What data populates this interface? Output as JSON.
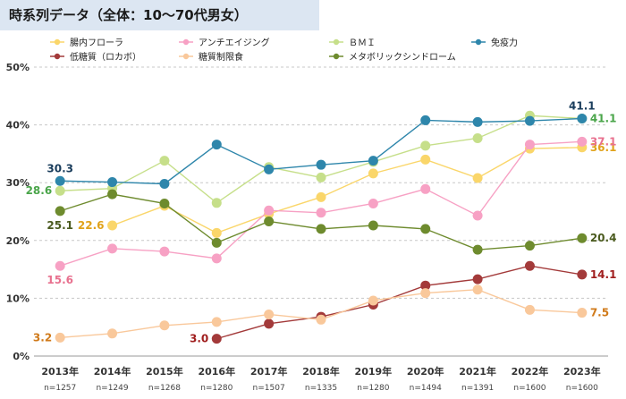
{
  "title": "時系列データ（全体：10〜70代男女）",
  "chart_data": {
    "type": "line",
    "categories": [
      "2013年",
      "2014年",
      "2015年",
      "2016年",
      "2017年",
      "2018年",
      "2019年",
      "2020年",
      "2021年",
      "2022年",
      "2023年"
    ],
    "sample_sizes": [
      "n=1257",
      "n=1249",
      "n=1268",
      "n=1280",
      "n=1507",
      "n=1335",
      "n=1280",
      "n=1494",
      "n=1391",
      "n=1600",
      "n=1600"
    ],
    "ylim": [
      0,
      50
    ],
    "yticks": [
      "0%",
      "10%",
      "20%",
      "30%",
      "40%",
      "50%"
    ],
    "grid": true,
    "legend_position": "top",
    "series": [
      {
        "name": "腸内フローラ",
        "color": "#fad66a",
        "values": [
          null,
          22.6,
          26.0,
          21.3,
          24.6,
          27.5,
          31.6,
          34.0,
          30.8,
          35.9,
          36.1
        ],
        "labels": [
          {
            "index": 1,
            "text": "22.6",
            "side": "left"
          },
          {
            "index": 10,
            "text": "36.1",
            "side": "right"
          }
        ]
      },
      {
        "name": "アンチエイジング",
        "color": "#f7a1c4",
        "values": [
          15.6,
          18.6,
          18.1,
          16.9,
          25.2,
          24.8,
          26.4,
          28.9,
          24.3,
          36.6,
          37.1
        ],
        "labels": [
          {
            "index": 0,
            "text": "15.6",
            "side": "below"
          },
          {
            "index": 10,
            "text": "37.1",
            "side": "right"
          }
        ]
      },
      {
        "name": "ＢＭＩ",
        "color": "#c6df8a",
        "values": [
          28.6,
          29.0,
          33.8,
          26.5,
          32.7,
          30.9,
          33.6,
          36.4,
          37.7,
          41.6,
          41.1
        ],
        "labels": [
          {
            "index": 0,
            "text": "28.6",
            "side": "left"
          },
          {
            "index": 10,
            "text": "41.1",
            "side": "right"
          }
        ]
      },
      {
        "name": "免疫力",
        "color": "#2e86ab",
        "values": [
          30.3,
          30.1,
          29.8,
          36.6,
          32.3,
          33.1,
          33.8,
          40.8,
          40.5,
          40.7,
          41.1
        ],
        "labels": [
          {
            "index": 0,
            "text": "30.3",
            "side": "above"
          },
          {
            "index": 10,
            "text": "41.1",
            "side": "above"
          }
        ]
      },
      {
        "name": "低糖質（ロカボ）",
        "color": "#a33a3a",
        "values": [
          null,
          null,
          null,
          3.0,
          5.6,
          6.8,
          8.9,
          12.2,
          13.3,
          15.6,
          14.1
        ],
        "labels": [
          {
            "index": 3,
            "text": "3.0",
            "side": "left"
          },
          {
            "index": 10,
            "text": "14.1",
            "side": "right"
          }
        ]
      },
      {
        "name": "糖質制限食",
        "color": "#f9c89b",
        "values": [
          3.2,
          3.9,
          5.3,
          5.9,
          7.2,
          6.3,
          9.6,
          10.9,
          11.5,
          8.0,
          7.5
        ],
        "labels": [
          {
            "index": 0,
            "text": "3.2",
            "side": "left"
          },
          {
            "index": 10,
            "text": "7.5",
            "side": "right"
          }
        ]
      },
      {
        "name": "メタボリックシンドローム",
        "color": "#6e8b2e",
        "values": [
          25.1,
          28.0,
          26.4,
          19.6,
          23.3,
          22.0,
          22.6,
          22.0,
          18.4,
          19.1,
          20.4
        ],
        "labels": [
          {
            "index": 0,
            "text": "25.1",
            "side": "below"
          },
          {
            "index": 10,
            "text": "20.4",
            "side": "right"
          }
        ]
      }
    ],
    "label_colors": {
      "腸内フローラ": "#e0a21a",
      "アンチエイジング": "#e8718f",
      "ＢＭＩ": "#4aa54a",
      "免疫力": "#1a3d5c",
      "低糖質（ロカボ）": "#a01e1e",
      "糖質制限食": "#d07a1a",
      "メタボリックシンドローム": "#4a5a1e"
    }
  }
}
